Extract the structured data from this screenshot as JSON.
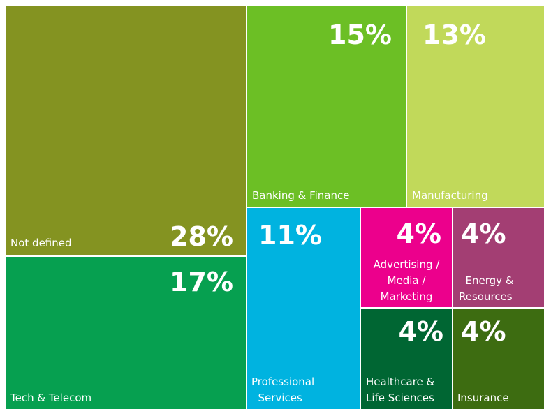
{
  "chart_data": {
    "type": "treemap",
    "title": "",
    "items": [
      {
        "label": "Not defined",
        "pct_label": "28%",
        "value": 28,
        "color": "#849321"
      },
      {
        "label": "Tech & Telecom",
        "pct_label": "17%",
        "value": 17,
        "color": "#06A050"
      },
      {
        "label": "Banking & Finance",
        "pct_label": "15%",
        "value": 15,
        "color": "#6CBF25"
      },
      {
        "label": "Manufacturing",
        "pct_label": "13%",
        "value": 13,
        "color": "#C1D95A"
      },
      {
        "label": "Professional Services",
        "pct_label": "11%",
        "value": 11,
        "color": "#00B3E0"
      },
      {
        "label": "Advertising / Media / Marketing",
        "pct_label": "4%",
        "value": 4,
        "color": "#EC008C"
      },
      {
        "label": "Energy & Resources",
        "pct_label": "4%",
        "value": 4,
        "color": "#A33E73"
      },
      {
        "label": "Healthcare & Life Sciences",
        "pct_label": "4%",
        "value": 4,
        "color": "#006633"
      },
      {
        "label": "Insurance",
        "pct_label": "4%",
        "value": 4,
        "color": "#3D6C11"
      }
    ]
  }
}
